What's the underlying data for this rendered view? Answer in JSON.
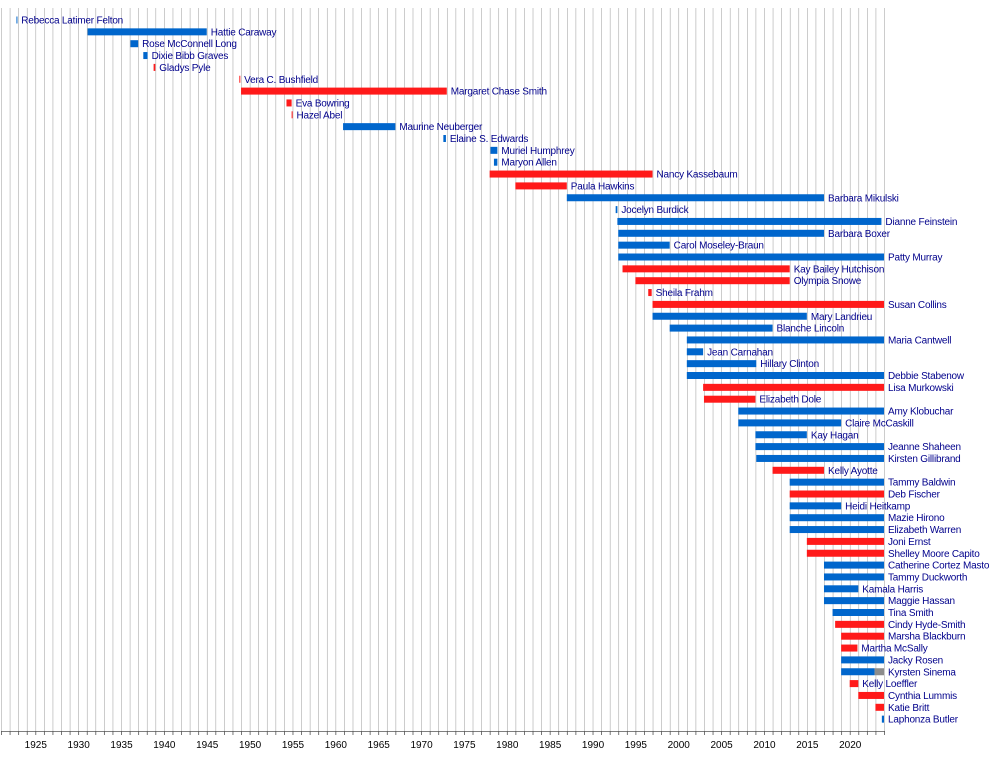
{
  "chart_data": {
    "type": "bar",
    "subtype": "gantt-timeline",
    "title": "",
    "xlabel": "",
    "ylabel": "",
    "xlim": [
      1921,
      2024
    ],
    "x_ticks": [
      1925,
      1930,
      1935,
      1940,
      1945,
      1950,
      1955,
      1960,
      1965,
      1970,
      1975,
      1980,
      1985,
      1990,
      1995,
      2000,
      2005,
      2010,
      2015,
      2020
    ],
    "grid": true,
    "legend": "none",
    "colors": {
      "Democratic": "#0066cc",
      "Republican": "#ff1a1a",
      "Independent": "#8c8c8c",
      "label": "#00008b",
      "grid": "#aaaaaa"
    },
    "rows": [
      {
        "name": "Rebecca Latimer Felton",
        "segments": [
          {
            "start": 1922.8,
            "end": 1922.9,
            "party": "Democratic"
          }
        ]
      },
      {
        "name": "Hattie Caraway",
        "segments": [
          {
            "start": 1931.1,
            "end": 1945.0,
            "party": "Democratic"
          }
        ]
      },
      {
        "name": "Rose McConnell Long",
        "segments": [
          {
            "start": 1936.1,
            "end": 1937.0,
            "party": "Democratic"
          }
        ]
      },
      {
        "name": "Dixie Bibb Graves",
        "segments": [
          {
            "start": 1937.6,
            "end": 1938.1,
            "party": "Democratic"
          }
        ]
      },
      {
        "name": "Gladys Pyle",
        "segments": [
          {
            "start": 1938.8,
            "end": 1939.0,
            "party": "Republican"
          }
        ]
      },
      {
        "name": "Vera C. Bushfield",
        "segments": [
          {
            "start": 1948.8,
            "end": 1948.9,
            "party": "Republican"
          }
        ]
      },
      {
        "name": "Margaret Chase Smith",
        "segments": [
          {
            "start": 1949.0,
            "end": 1973.0,
            "party": "Republican"
          }
        ]
      },
      {
        "name": "Eva Bowring",
        "segments": [
          {
            "start": 1954.3,
            "end": 1954.9,
            "party": "Republican"
          }
        ]
      },
      {
        "name": "Hazel Abel",
        "segments": [
          {
            "start": 1954.9,
            "end": 1955.0,
            "party": "Republican"
          }
        ]
      },
      {
        "name": "Maurine Neuberger",
        "segments": [
          {
            "start": 1960.9,
            "end": 1967.0,
            "party": "Democratic"
          }
        ]
      },
      {
        "name": "Elaine S. Edwards",
        "segments": [
          {
            "start": 1972.6,
            "end": 1972.9,
            "party": "Democratic"
          }
        ]
      },
      {
        "name": "Muriel Humphrey",
        "segments": [
          {
            "start": 1978.1,
            "end": 1978.9,
            "party": "Democratic"
          }
        ]
      },
      {
        "name": "Maryon Allen",
        "segments": [
          {
            "start": 1978.5,
            "end": 1978.9,
            "party": "Democratic"
          }
        ]
      },
      {
        "name": "Nancy Kassebaum",
        "segments": [
          {
            "start": 1978.0,
            "end": 1997.0,
            "party": "Republican"
          }
        ]
      },
      {
        "name": "Paula Hawkins",
        "segments": [
          {
            "start": 1981.0,
            "end": 1987.0,
            "party": "Republican"
          }
        ]
      },
      {
        "name": "Barbara Mikulski",
        "segments": [
          {
            "start": 1987.0,
            "end": 2017.0,
            "party": "Democratic"
          }
        ]
      },
      {
        "name": "Jocelyn Burdick",
        "segments": [
          {
            "start": 1992.7,
            "end": 1992.9,
            "party": "Democratic"
          }
        ]
      },
      {
        "name": "Dianne Feinstein",
        "segments": [
          {
            "start": 1992.9,
            "end": 2023.7,
            "party": "Democratic"
          }
        ]
      },
      {
        "name": "Barbara Boxer",
        "segments": [
          {
            "start": 1993.0,
            "end": 2017.0,
            "party": "Democratic"
          }
        ]
      },
      {
        "name": "Carol Moseley-Braun",
        "segments": [
          {
            "start": 1993.0,
            "end": 1999.0,
            "party": "Democratic"
          }
        ]
      },
      {
        "name": "Patty Murray",
        "segments": [
          {
            "start": 1993.0,
            "end": 2024.0,
            "party": "Democratic"
          }
        ]
      },
      {
        "name": "Kay Bailey Hutchison",
        "segments": [
          {
            "start": 1993.5,
            "end": 2013.0,
            "party": "Republican"
          }
        ]
      },
      {
        "name": "Olympia Snowe",
        "segments": [
          {
            "start": 1995.0,
            "end": 2013.0,
            "party": "Republican"
          }
        ]
      },
      {
        "name": "Sheila Frahm",
        "segments": [
          {
            "start": 1996.5,
            "end": 1996.9,
            "party": "Republican"
          }
        ]
      },
      {
        "name": "Susan Collins",
        "segments": [
          {
            "start": 1997.0,
            "end": 2024.0,
            "party": "Republican"
          }
        ]
      },
      {
        "name": "Mary Landrieu",
        "segments": [
          {
            "start": 1997.0,
            "end": 2015.0,
            "party": "Democratic"
          }
        ]
      },
      {
        "name": "Blanche Lincoln",
        "segments": [
          {
            "start": 1999.0,
            "end": 2011.0,
            "party": "Democratic"
          }
        ]
      },
      {
        "name": "Maria Cantwell",
        "segments": [
          {
            "start": 2001.0,
            "end": 2024.0,
            "party": "Democratic"
          }
        ]
      },
      {
        "name": "Jean Carnahan",
        "segments": [
          {
            "start": 2001.0,
            "end": 2002.9,
            "party": "Democratic"
          }
        ]
      },
      {
        "name": "Hillary Clinton",
        "segments": [
          {
            "start": 2001.0,
            "end": 2009.1,
            "party": "Democratic"
          }
        ]
      },
      {
        "name": "Debbie Stabenow",
        "segments": [
          {
            "start": 2001.0,
            "end": 2024.0,
            "party": "Democratic"
          }
        ]
      },
      {
        "name": "Lisa Murkowski",
        "segments": [
          {
            "start": 2002.9,
            "end": 2024.0,
            "party": "Republican"
          }
        ]
      },
      {
        "name": "Elizabeth Dole",
        "segments": [
          {
            "start": 2003.0,
            "end": 2009.0,
            "party": "Republican"
          }
        ]
      },
      {
        "name": "Amy Klobuchar",
        "segments": [
          {
            "start": 2007.0,
            "end": 2024.0,
            "party": "Democratic"
          }
        ]
      },
      {
        "name": "Claire McCaskill",
        "segments": [
          {
            "start": 2007.0,
            "end": 2019.0,
            "party": "Democratic"
          }
        ]
      },
      {
        "name": "Kay Hagan",
        "segments": [
          {
            "start": 2009.0,
            "end": 2015.0,
            "party": "Democratic"
          }
        ]
      },
      {
        "name": "Jeanne Shaheen",
        "segments": [
          {
            "start": 2009.0,
            "end": 2024.0,
            "party": "Democratic"
          }
        ]
      },
      {
        "name": "Kirsten Gillibrand",
        "segments": [
          {
            "start": 2009.1,
            "end": 2024.0,
            "party": "Democratic"
          }
        ]
      },
      {
        "name": "Kelly Ayotte",
        "segments": [
          {
            "start": 2011.0,
            "end": 2017.0,
            "party": "Republican"
          }
        ]
      },
      {
        "name": "Tammy Baldwin",
        "segments": [
          {
            "start": 2013.0,
            "end": 2024.0,
            "party": "Democratic"
          }
        ]
      },
      {
        "name": "Deb Fischer",
        "segments": [
          {
            "start": 2013.0,
            "end": 2024.0,
            "party": "Republican"
          }
        ]
      },
      {
        "name": "Heidi Heitkamp",
        "segments": [
          {
            "start": 2013.0,
            "end": 2019.0,
            "party": "Democratic"
          }
        ]
      },
      {
        "name": "Mazie Hirono",
        "segments": [
          {
            "start": 2013.0,
            "end": 2024.0,
            "party": "Democratic"
          }
        ]
      },
      {
        "name": "Elizabeth Warren",
        "segments": [
          {
            "start": 2013.0,
            "end": 2024.0,
            "party": "Democratic"
          }
        ]
      },
      {
        "name": "Joni Ernst",
        "segments": [
          {
            "start": 2015.0,
            "end": 2024.0,
            "party": "Republican"
          }
        ]
      },
      {
        "name": "Shelley Moore Capito",
        "segments": [
          {
            "start": 2015.0,
            "end": 2024.0,
            "party": "Republican"
          }
        ]
      },
      {
        "name": "Catherine Cortez Masto",
        "segments": [
          {
            "start": 2017.0,
            "end": 2024.0,
            "party": "Democratic"
          }
        ]
      },
      {
        "name": "Tammy Duckworth",
        "segments": [
          {
            "start": 2017.0,
            "end": 2024.0,
            "party": "Democratic"
          }
        ]
      },
      {
        "name": "Kamala Harris",
        "segments": [
          {
            "start": 2017.0,
            "end": 2021.0,
            "party": "Democratic"
          }
        ]
      },
      {
        "name": "Maggie Hassan",
        "segments": [
          {
            "start": 2017.0,
            "end": 2024.0,
            "party": "Democratic"
          }
        ]
      },
      {
        "name": "Tina Smith",
        "segments": [
          {
            "start": 2018.0,
            "end": 2024.0,
            "party": "Democratic"
          }
        ]
      },
      {
        "name": "Cindy Hyde-Smith",
        "segments": [
          {
            "start": 2018.3,
            "end": 2024.0,
            "party": "Republican"
          }
        ]
      },
      {
        "name": "Marsha Blackburn",
        "segments": [
          {
            "start": 2019.0,
            "end": 2024.0,
            "party": "Republican"
          }
        ]
      },
      {
        "name": "Martha McSally",
        "segments": [
          {
            "start": 2019.0,
            "end": 2020.9,
            "party": "Republican"
          }
        ]
      },
      {
        "name": "Jacky Rosen",
        "segments": [
          {
            "start": 2019.0,
            "end": 2024.0,
            "party": "Democratic"
          }
        ]
      },
      {
        "name": "Kyrsten Sinema",
        "segments": [
          {
            "start": 2019.0,
            "end": 2022.9,
            "party": "Democratic"
          },
          {
            "start": 2022.9,
            "end": 2024.0,
            "party": "Independent"
          }
        ]
      },
      {
        "name": "Kelly Loeffler",
        "segments": [
          {
            "start": 2020.0,
            "end": 2021.0,
            "party": "Republican"
          }
        ]
      },
      {
        "name": "Cynthia Lummis",
        "segments": [
          {
            "start": 2021.0,
            "end": 2024.0,
            "party": "Republican"
          }
        ]
      },
      {
        "name": "Katie Britt",
        "segments": [
          {
            "start": 2023.0,
            "end": 2024.0,
            "party": "Republican"
          }
        ]
      },
      {
        "name": "Laphonza Butler",
        "segments": [
          {
            "start": 2023.75,
            "end": 2024.0,
            "party": "Democratic"
          }
        ]
      }
    ]
  }
}
